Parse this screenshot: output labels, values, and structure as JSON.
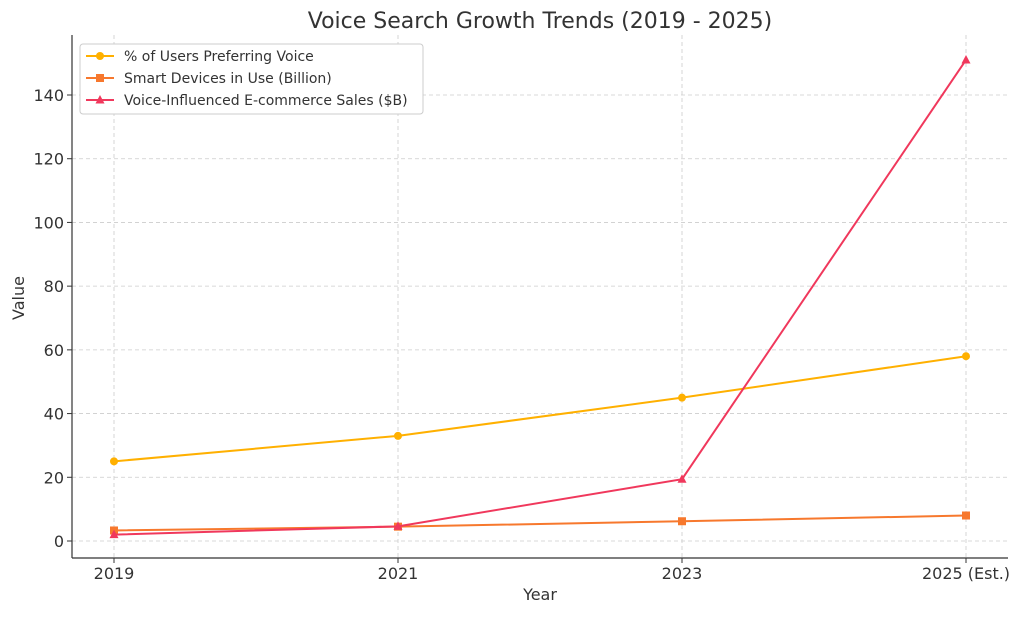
{
  "chart_data": {
    "type": "line",
    "title": "Voice Search Growth Trends (2019 - 2025)",
    "xlabel": "Year",
    "ylabel": "Value",
    "categories": [
      "2019",
      "2021",
      "2023",
      "2025 (Est.)"
    ],
    "ylim": [
      -5,
      158
    ],
    "yticks": [
      0,
      20,
      40,
      60,
      80,
      100,
      120,
      140
    ],
    "grid": true,
    "legend_position": "top-left",
    "series": [
      {
        "name": "% of Users Preferring Voice",
        "values": [
          25,
          33,
          45,
          58
        ],
        "color": "#FFB000",
        "marker": "circle"
      },
      {
        "name": "Smart Devices in Use (Billion)",
        "values": [
          3.3,
          4.5,
          6.2,
          8.0
        ],
        "color": "#F7782D",
        "marker": "square"
      },
      {
        "name": "Voice-Influenced E-commerce Sales ($B)",
        "values": [
          2,
          4.6,
          19.4,
          151
        ],
        "color": "#F0385C",
        "marker": "triangle"
      }
    ]
  }
}
